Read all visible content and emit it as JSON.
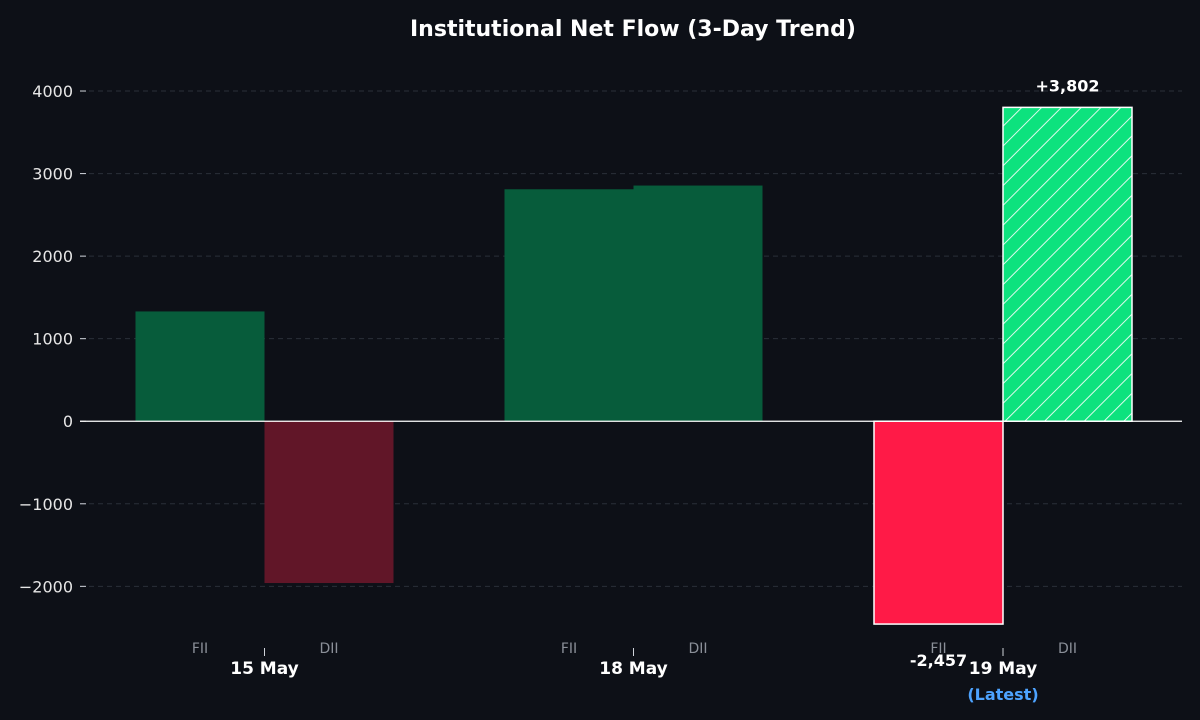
{
  "chart_data": {
    "type": "bar",
    "title": "Institutional Net Flow (3-Day Trend)",
    "categories": [
      "15 May",
      "18 May",
      "19 May"
    ],
    "latest_note": "(Latest)",
    "sub_labels": [
      "FII",
      "DII"
    ],
    "series": [
      {
        "name": "FII",
        "values": [
          1330,
          2810,
          -2457
        ]
      },
      {
        "name": "DII",
        "values": [
          -1960,
          2855,
          3802
        ]
      }
    ],
    "value_labels": {
      "fii_latest": "-2,457",
      "dii_latest": "+3,802"
    },
    "ylim": [
      -2650,
      4400
    ],
    "yticks": [
      -2000,
      -1000,
      0,
      1000,
      2000,
      3000,
      4000
    ],
    "ytick_labels": [
      "−2000",
      "−1000",
      "0",
      "1000",
      "2000",
      "3000",
      "4000"
    ],
    "grid": true,
    "colors": {
      "background": "#0d1017",
      "positive_muted": "#075c3b",
      "negative_muted": "#611628",
      "positive_latest": "#0de27e",
      "negative_latest": "#ff1a47",
      "latest_note": "#4da3ff"
    }
  }
}
